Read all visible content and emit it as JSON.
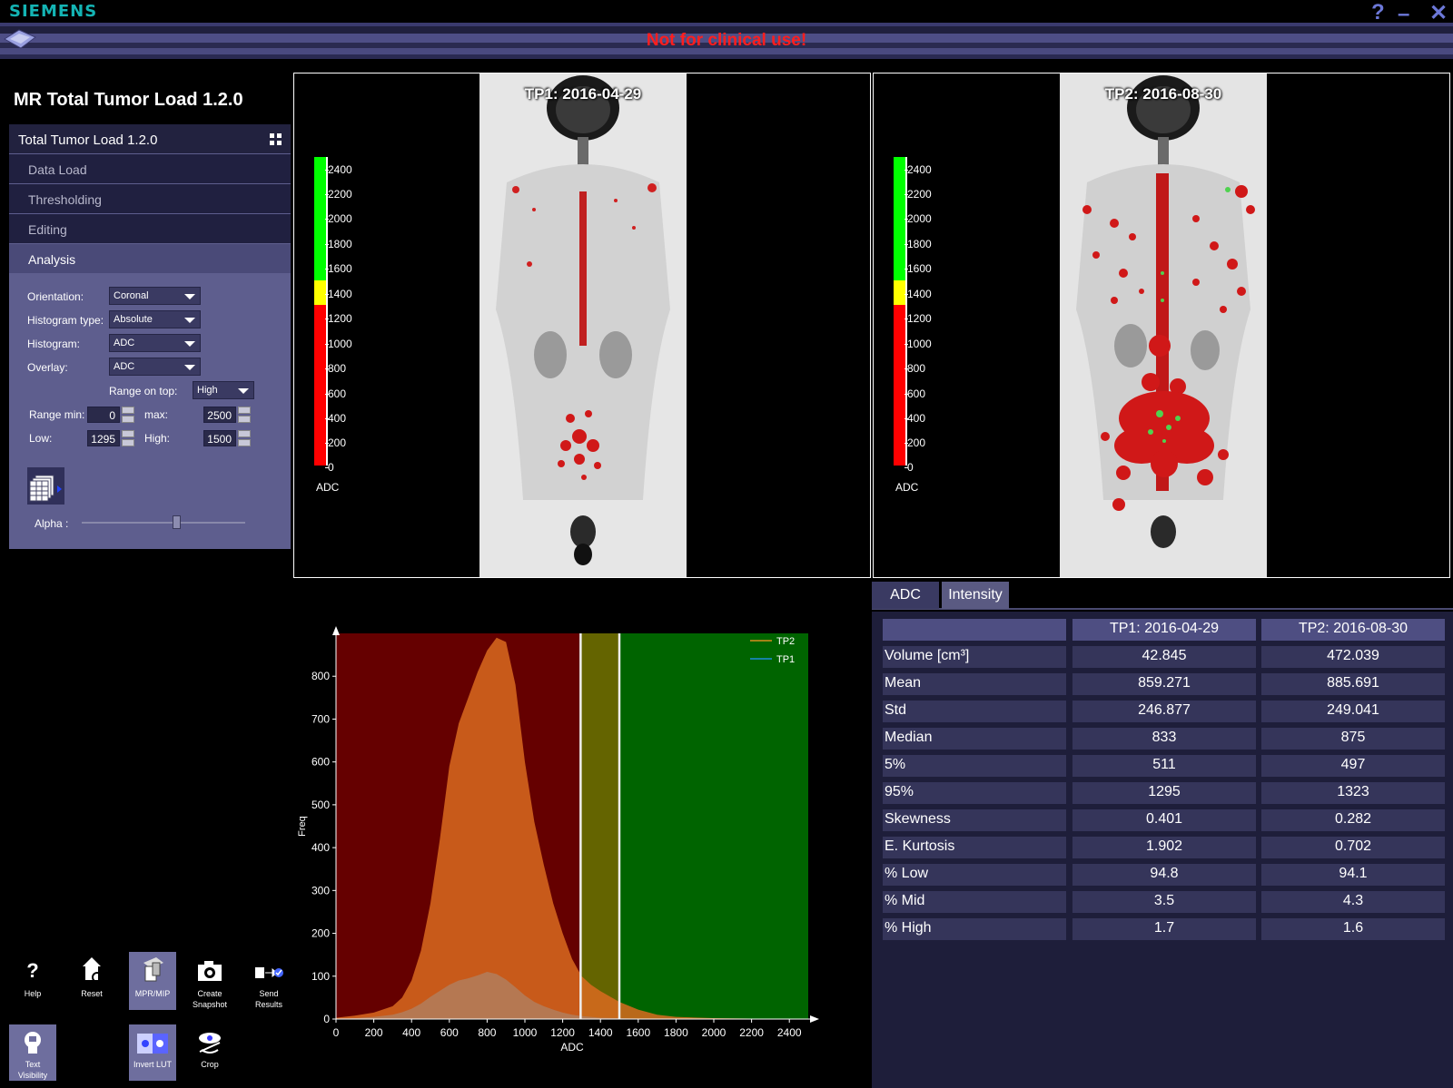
{
  "brand": "SIEMENS",
  "banner": {
    "warning": "Not for clinical use!"
  },
  "window_controls": {
    "help": "?",
    "minimize": "–",
    "close": "✕"
  },
  "app_title": "MR Total Tumor Load 1.2.0",
  "workflow": {
    "header": "Total Tumor Load 1.2.0",
    "steps": [
      "Data Load",
      "Thresholding",
      "Editing",
      "Analysis"
    ],
    "active_step": "Analysis"
  },
  "analysis": {
    "orientation_label": "Orientation:",
    "orientation_value": "Coronal",
    "histogram_type_label": "Histogram type:",
    "histogram_type_value": "Absolute",
    "histogram_label": "Histogram:",
    "histogram_value": "ADC",
    "overlay_label": "Overlay:",
    "overlay_value": "ADC",
    "range_on_top_label": "Range on top:",
    "range_on_top_value": "High",
    "range_min_label": "Range min:",
    "range_min_value": "0",
    "max_label": "max:",
    "max_value": "2500",
    "low_label": "Low:",
    "low_value": "1295",
    "high_label": "High:",
    "high_value": "1500",
    "alpha_label": "Alpha :",
    "alpha_level": 0.58
  },
  "tools": {
    "help": "Help",
    "reset": "Reset",
    "mpr_mip": "MPR/MIP",
    "create_snapshot_1": "Create",
    "create_snapshot_2": "Snapshot",
    "send_results_1": "Send",
    "send_results_2": "Results",
    "text_visibility_1": "Text",
    "text_visibility_2": "Visibility",
    "invert_lut": "Invert LUT",
    "crop": "Crop",
    "help_icon": "?"
  },
  "viewports": [
    {
      "title": "TP1: 2016-04-29"
    },
    {
      "title": "TP2: 2016-08-30"
    }
  ],
  "colorbar": {
    "ticks": [
      "2400",
      "2200",
      "2000",
      "1800",
      "1600",
      "1400",
      "1200",
      "1000",
      "800",
      "600",
      "400",
      "200",
      "0"
    ],
    "unit": "ADC",
    "colors": {
      "low": "#ff0000",
      "mid": "#ffff00",
      "high": "#00ff00"
    }
  },
  "tabs": [
    "ADC",
    "Intensity"
  ],
  "active_tab": "ADC",
  "stats_table": {
    "columns": [
      "",
      "TP1: 2016-04-29",
      "TP2: 2016-08-30"
    ],
    "rows": [
      [
        "Volume [cm³]",
        "42.845",
        "472.039"
      ],
      [
        "Mean",
        "859.271",
        "885.691"
      ],
      [
        "Std",
        "246.877",
        "249.041"
      ],
      [
        "Median",
        "833",
        "875"
      ],
      [
        " 5%",
        "511",
        "497"
      ],
      [
        " 95%",
        "1295",
        "1323"
      ],
      [
        "Skewness",
        "0.401",
        "0.282"
      ],
      [
        "E. Kurtosis",
        "1.902",
        "0.702"
      ],
      [
        "% Low",
        "94.8",
        "94.1"
      ],
      [
        "% Mid",
        "3.5",
        "4.3"
      ],
      [
        "% High",
        "1.7",
        "1.6"
      ]
    ]
  },
  "chart_data": {
    "type": "area",
    "xlabel": "ADC",
    "ylabel": "Freq",
    "xlim": [
      0,
      2500
    ],
    "ylim": [
      0,
      900
    ],
    "xticks": [
      "0",
      "200",
      "400",
      "600",
      "800",
      "1000",
      "1200",
      "1400",
      "1600",
      "1800",
      "2000",
      "2200",
      "2400"
    ],
    "yticks": [
      "0",
      "100",
      "200",
      "300",
      "400",
      "500",
      "600",
      "700",
      "800"
    ],
    "legend_position": "top-right",
    "bands": [
      {
        "from": 0,
        "to": 1295,
        "color": "#650000"
      },
      {
        "from": 1295,
        "to": 1500,
        "color": "#646400"
      },
      {
        "from": 1500,
        "to": 2500,
        "color": "#006400"
      }
    ],
    "threshold_lines": [
      1295,
      1500
    ],
    "x": [
      0,
      100,
      200,
      300,
      350,
      400,
      450,
      500,
      550,
      600,
      650,
      700,
      750,
      800,
      850,
      900,
      950,
      1000,
      1050,
      1100,
      1150,
      1200,
      1250,
      1300,
      1350,
      1400,
      1500,
      1600,
      1700,
      1800,
      2000,
      2200,
      2500
    ],
    "series": [
      {
        "name": "TP2",
        "color": "#d96a1e",
        "values": [
          3,
          8,
          15,
          30,
          50,
          90,
          160,
          270,
          420,
          590,
          690,
          750,
          810,
          860,
          890,
          880,
          780,
          600,
          460,
          360,
          270,
          200,
          140,
          100,
          80,
          65,
          40,
          22,
          10,
          5,
          2,
          1,
          0
        ]
      },
      {
        "name": "TP1",
        "color": "#b08060",
        "values": [
          1,
          2,
          5,
          10,
          16,
          24,
          36,
          52,
          66,
          80,
          90,
          95,
          102,
          110,
          105,
          92,
          74,
          55,
          40,
          30,
          22,
          15,
          10,
          7,
          5,
          3,
          2,
          1,
          1,
          0,
          0,
          0,
          0
        ]
      }
    ]
  }
}
